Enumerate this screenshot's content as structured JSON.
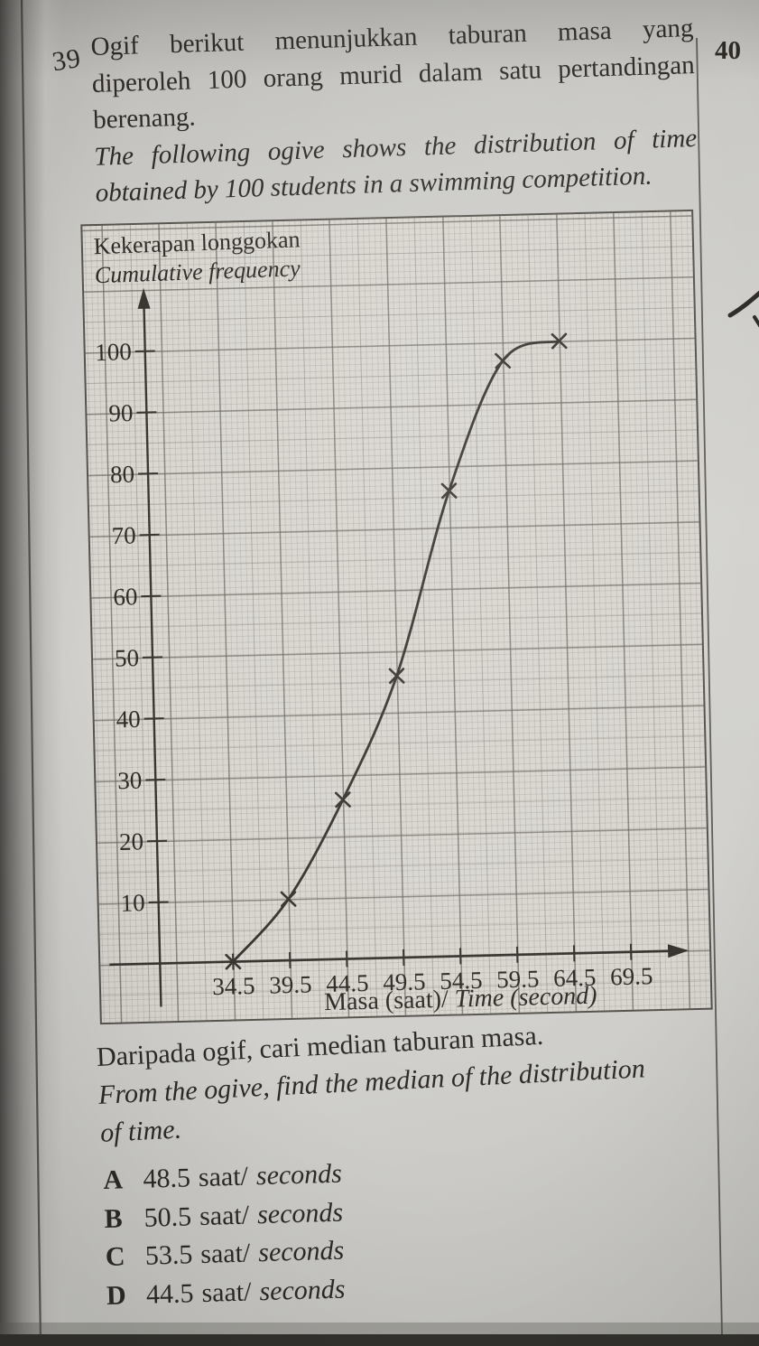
{
  "page": {
    "corner_page_number": "40",
    "question_number": "39"
  },
  "question": {
    "text_malay_lines": [
      "Ogif berikut menunjukkan taburan masa yang",
      "diperoleh 100 orang murid dalam satu pertandingan",
      "berenang."
    ],
    "text_english_lines": [
      "The following ogive shows the distribution of time",
      "obtained by 100 students in a swimming competition."
    ],
    "prompt_malay": "Daripada ogif, cari median taburan masa.",
    "prompt_english_lines": [
      "From the ogive, find the median of the distribution",
      "of time."
    ]
  },
  "options": [
    {
      "letter": "A",
      "value": "48.5",
      "unit_malay": "saat/",
      "unit_english": "seconds"
    },
    {
      "letter": "B",
      "value": "50.5",
      "unit_malay": "saat/",
      "unit_english": "seconds"
    },
    {
      "letter": "C",
      "value": "53.5",
      "unit_malay": "saat/",
      "unit_english": "seconds"
    },
    {
      "letter": "D",
      "value": "44.5",
      "unit_malay": "saat/",
      "unit_english": "seconds"
    }
  ],
  "chart_data": {
    "type": "line",
    "subtype": "ogive-cumulative-frequency",
    "title_malay": "Kekerapan longgokan",
    "title_english": "Cumulative frequency",
    "xlabel_malay": "Masa (saat)/",
    "xlabel_english": "Time (second)",
    "x": [
      34.5,
      39.5,
      44.5,
      49.5,
      54.5,
      59.5,
      64.5
    ],
    "y": [
      0,
      10,
      26,
      46,
      76,
      97,
      100
    ],
    "x_ticks": [
      34.5,
      39.5,
      44.5,
      49.5,
      54.5,
      59.5,
      64.5,
      69.5
    ],
    "y_ticks": [
      10,
      20,
      30,
      40,
      50,
      60,
      70,
      80,
      90,
      100
    ],
    "marker": "x",
    "grid": "graph-paper",
    "xlim": [
      32.0,
      71.5
    ],
    "ylim": [
      0,
      106
    ],
    "colors": {
      "ink": "#38342f",
      "paper": "#d9d6d0"
    }
  }
}
